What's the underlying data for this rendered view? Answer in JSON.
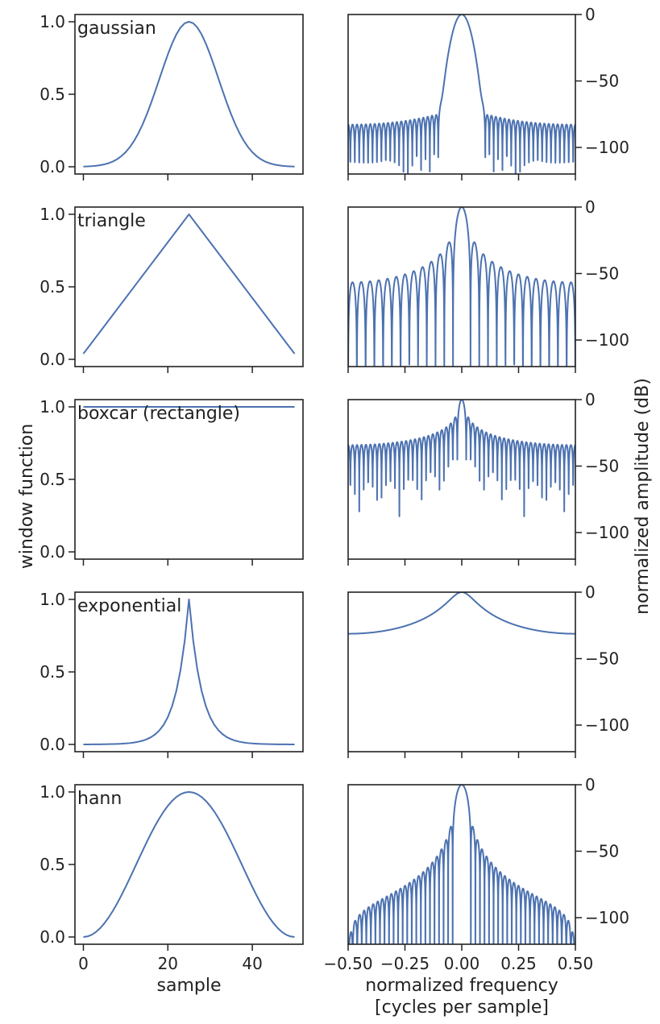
{
  "chart_data": {
    "type": "line",
    "line_color": "#4C72B0",
    "left": {
      "ylabel": "window function",
      "xlabel": "sample",
      "xlim": [
        -2,
        52
      ],
      "ylim": [
        -0.05,
        1.05
      ],
      "xticks": [
        0,
        20,
        40
      ],
      "xtick_labels": [
        "0",
        "20",
        "40"
      ],
      "yticks": [
        0,
        0.5,
        1
      ],
      "ytick_labels": [
        "0.0",
        "0.5",
        "1.0"
      ],
      "num_samples": 51
    },
    "right": {
      "ylabel": "normalized amplitude (dB)",
      "xlabel_line1": "normalized frequency",
      "xlabel_line2": "[cycles per sample]",
      "xlim": [
        -0.5,
        0.5
      ],
      "ylim": [
        -120,
        0
      ],
      "xticks": [
        -0.5,
        -0.25,
        0,
        0.25,
        0.5
      ],
      "xtick_labels": [
        "−0.50",
        "−0.25",
        "0.00",
        "0.25",
        "0.50"
      ],
      "yticks": [
        0,
        -50,
        -100
      ],
      "ytick_labels": [
        "0",
        "−50",
        "−100"
      ]
    },
    "windows": [
      {
        "name": "gaussian",
        "label": "gaussian",
        "std": 7
      },
      {
        "name": "triangle",
        "label": "triangle"
      },
      {
        "name": "boxcar",
        "label": "boxcar (rectangle)"
      },
      {
        "name": "exponential",
        "label": "exponential",
        "tau": 3
      },
      {
        "name": "hann",
        "label": "hann"
      }
    ]
  }
}
